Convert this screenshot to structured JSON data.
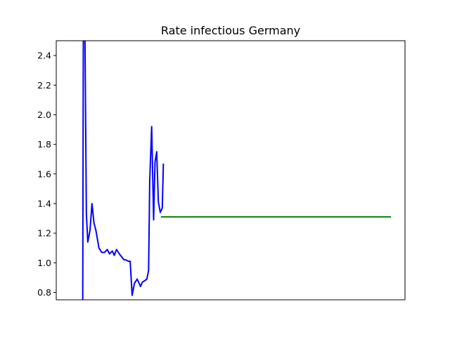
{
  "chart_data": {
    "type": "line",
    "title": "Rate infectious Germany",
    "xlabel": "",
    "ylabel": "",
    "grid": false,
    "legend": "none",
    "xlim": [
      0,
      125
    ],
    "ylim": [
      0.75,
      2.5
    ],
    "yticks": [
      0.8,
      1.0,
      1.2,
      1.4,
      1.6,
      1.8,
      2.0,
      2.2,
      2.4
    ],
    "ytick_labels": [
      "0.8",
      "1.0",
      "1.2",
      "1.4",
      "1.6",
      "1.8",
      "2.0",
      "2.2",
      "2.4"
    ],
    "xticks_visible": false,
    "series": [
      {
        "color": "#0000ff",
        "x": [
          9.5,
          9.7,
          10.3,
          10.8,
          11.3,
          12.1,
          12.8,
          13.5,
          14.2,
          15.3,
          16.3,
          17.3,
          18.3,
          19.1,
          20.1,
          20.8,
          21.6,
          22.6,
          24.3,
          25.0,
          25.8,
          26.5,
          27.2,
          28.0,
          29.0,
          30.2,
          30.9,
          31.8,
          32.5,
          33.1,
          33.5,
          34.2,
          34.9,
          35.4,
          36.0,
          36.6
        ],
        "y": [
          0.75,
          2.5,
          2.5,
          1.33,
          1.14,
          1.22,
          1.4,
          1.27,
          1.22,
          1.1,
          1.07,
          1.07,
          1.09,
          1.06,
          1.08,
          1.05,
          1.09,
          1.06,
          1.02,
          1.02,
          1.01,
          1.01,
          0.78,
          0.86,
          0.89,
          0.84,
          0.87,
          0.88,
          0.89,
          0.95,
          1.55,
          1.92,
          1.29,
          1.68,
          1.75,
          1.41
        ]
      },
      {
        "color": "#0000ff",
        "x": [
          36.6,
          37.3,
          38.0,
          38.4
        ],
        "y": [
          1.41,
          1.34,
          1.37,
          1.67
        ]
      },
      {
        "color": "#008000",
        "x": [
          37.5,
          120.0
        ],
        "y": [
          1.31,
          1.31
        ]
      }
    ]
  }
}
